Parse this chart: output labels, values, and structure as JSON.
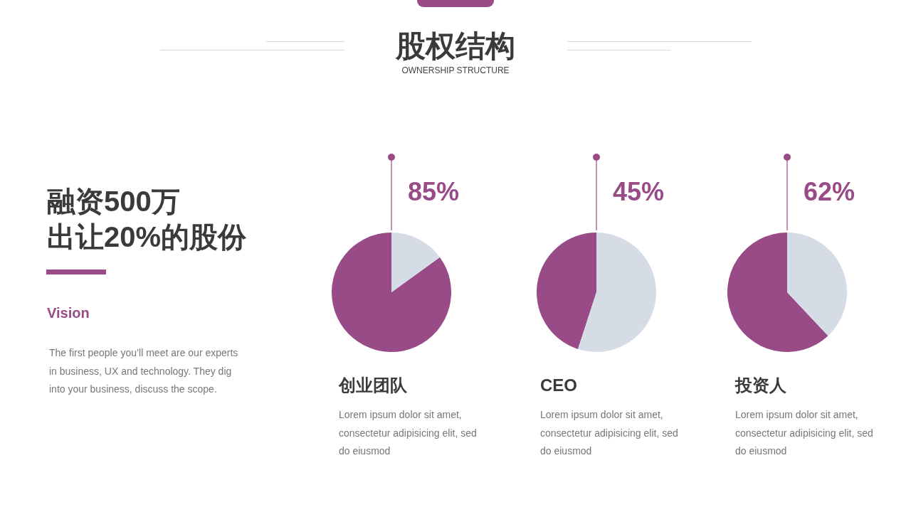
{
  "chart_data": [
    {
      "type": "other",
      "title": "股权结构",
      "subtitle": "OWNERSHIP STRUCTURE",
      "annotations": [
        "融资500万",
        "出让20%的股份",
        "Vision",
        "The first people you’ll meet are our experts",
        "in business, UX and technology. They dig",
        "into your business, discuss the scope."
      ]
    },
    {
      "type": "pie",
      "title": "创业团队",
      "categories": [
        null,
        null
      ],
      "values": [
        85,
        15
      ],
      "colors": [
        "#984b87",
        "#d6dce6"
      ],
      "value_labels": [
        "85%",
        null
      ],
      "annotations": [
        "Lorem ipsum dolor sit amet,",
        "consectetur adipisicing elit, sed",
        "do eiusmod"
      ]
    },
    {
      "type": "pie",
      "title": "CEO",
      "categories": [
        null,
        null
      ],
      "values": [
        45,
        55
      ],
      "colors": [
        "#984b87",
        "#d6dce6"
      ],
      "value_labels": [
        "45%",
        null
      ],
      "annotations": [
        "Lorem ipsum dolor sit amet,",
        "consectetur adipisicing elit, sed",
        "do eiusmod"
      ]
    },
    {
      "type": "pie",
      "title": "投资人",
      "categories": [
        null,
        null
      ],
      "values": [
        62,
        38
      ],
      "colors": [
        "#984b87",
        "#d6dce6"
      ],
      "value_labels": [
        "62%",
        null
      ],
      "annotations": [
        "Lorem ipsum dolor sit amet,",
        "consectetur adipisicing elit, sed",
        "do eiusmod"
      ]
    }
  ]
}
